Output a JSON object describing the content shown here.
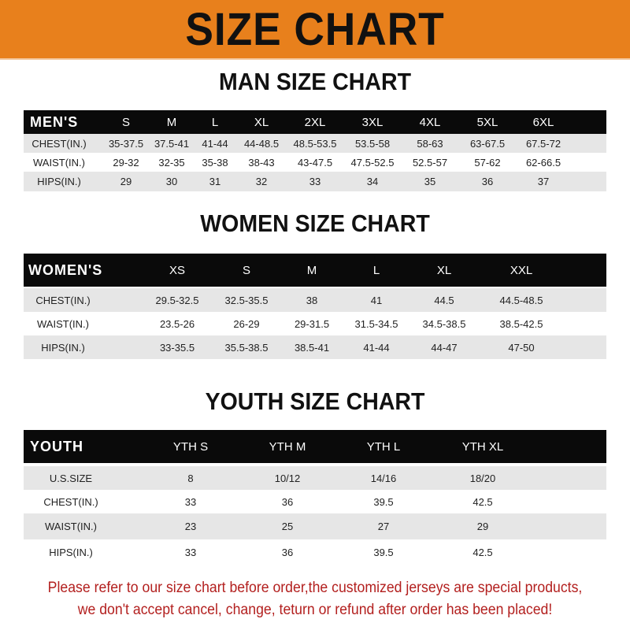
{
  "title": "SIZE CHART",
  "colors": {
    "banner": "#e8801c",
    "header_row": "#0a0a0a",
    "stripe": "#e6e6e6",
    "note": "#b3201f"
  },
  "men": {
    "title": "MAN SIZE CHART",
    "header": [
      "MEN'S",
      "S",
      "M",
      "L",
      "XL",
      "2XL",
      "3XL",
      "4XL",
      "5XL",
      "6XL"
    ],
    "rows": [
      [
        "CHEST(IN.)",
        "35-37.5",
        "37.5-41",
        "41-44",
        "44-48.5",
        "48.5-53.5",
        "53.5-58",
        "58-63",
        "63-67.5",
        "67.5-72"
      ],
      [
        "WAIST(IN.)",
        "29-32",
        "32-35",
        "35-38",
        "38-43",
        "43-47.5",
        "47.5-52.5",
        "52.5-57",
        "57-62",
        "62-66.5"
      ],
      [
        "HIPS(IN.)",
        "29",
        "30",
        "31",
        "32",
        "33",
        "34",
        "35",
        "36",
        "37"
      ]
    ]
  },
  "women": {
    "title": "WOMEN SIZE CHART",
    "header": [
      "WOMEN'S",
      "XS",
      "S",
      "M",
      "L",
      "XL",
      "XXL"
    ],
    "rows": [
      [
        "CHEST(IN.)",
        "29.5-32.5",
        "32.5-35.5",
        "38",
        "41",
        "44.5",
        "44.5-48.5"
      ],
      [
        "WAIST(IN.)",
        "23.5-26",
        "26-29",
        "29-31.5",
        "31.5-34.5",
        "34.5-38.5",
        "38.5-42.5"
      ],
      [
        "HIPS(IN.)",
        "33-35.5",
        "35.5-38.5",
        "38.5-41",
        "41-44",
        "44-47",
        "47-50"
      ]
    ]
  },
  "youth": {
    "title": "YOUTH SIZE CHART",
    "header": [
      "YOUTH",
      "YTH S",
      "YTH M",
      "YTH L",
      "YTH XL"
    ],
    "rows": [
      [
        "U.S.SIZE",
        "8",
        "10/12",
        "14/16",
        "18/20"
      ],
      [
        "CHEST(IN.)",
        "33",
        "36",
        "39.5",
        "42.5"
      ],
      [
        "WAIST(IN.)",
        "23",
        "25",
        "27",
        "29"
      ],
      [
        "HIPS(IN.)",
        "33",
        "36",
        "39.5",
        "42.5"
      ]
    ]
  },
  "note": {
    "line1": "Please refer to our size chart before order,the customized jerseys are special products,",
    "line2": "we don't accept cancel, change, teturn or refund after order has been placed!"
  }
}
